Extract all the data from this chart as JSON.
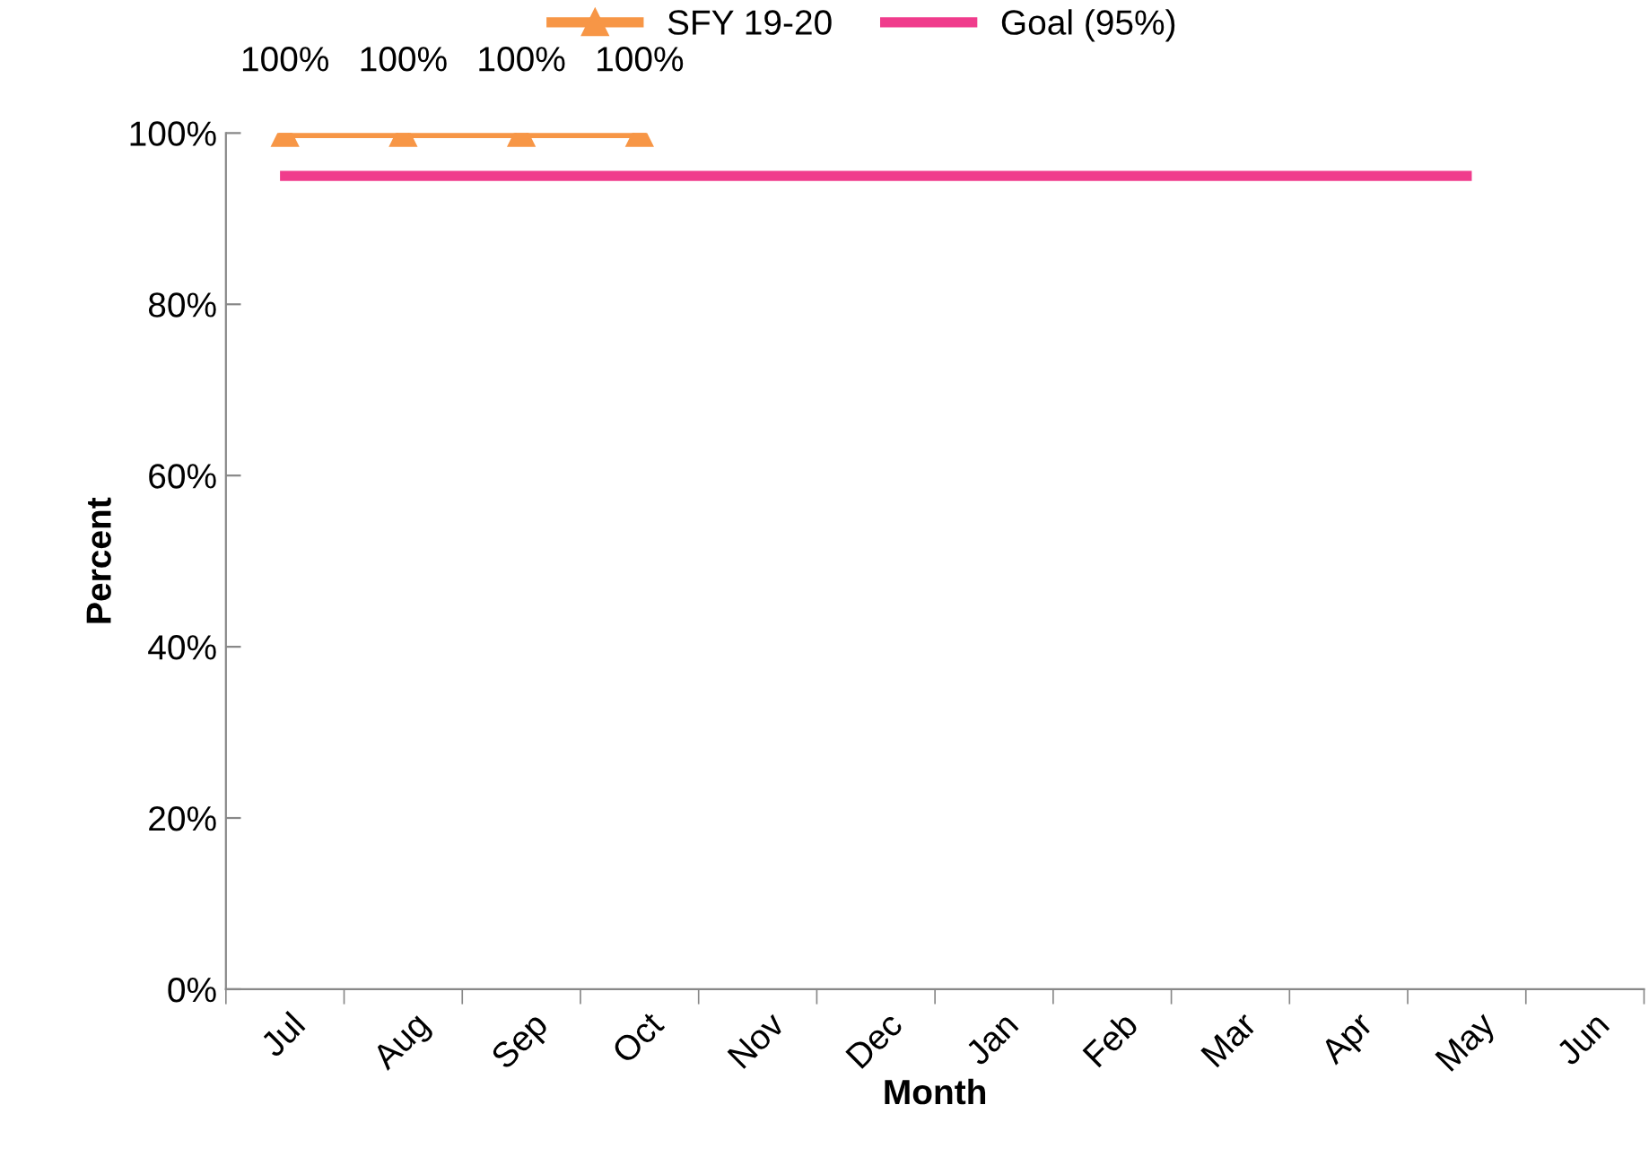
{
  "chart_data": {
    "type": "line",
    "xlabel": "Month",
    "ylabel": "Percent",
    "categories": [
      "Jul",
      "Aug",
      "Sep",
      "Oct",
      "Nov",
      "Dec",
      "Jan",
      "Feb",
      "Mar",
      "Apr",
      "May",
      "Jun"
    ],
    "series": [
      {
        "name": "SFY 19-20",
        "color": "#f79646",
        "marker": "triangle",
        "values": [
          100,
          100,
          100,
          100,
          null,
          null,
          null,
          null,
          null,
          null,
          null,
          null
        ],
        "value_labels": [
          "100%",
          "100%",
          "100%",
          "100%",
          null,
          null,
          null,
          null,
          null,
          null,
          null,
          null
        ]
      },
      {
        "name": "Goal (95%)",
        "color": "#f03c8c",
        "marker": "none",
        "values": [
          95,
          95,
          95,
          95,
          95,
          95,
          95,
          95,
          95,
          95,
          95,
          null
        ]
      }
    ],
    "ylim": [
      0,
      100
    ],
    "yticks": [
      {
        "value": 0,
        "label": "0%"
      },
      {
        "value": 20,
        "label": "20%"
      },
      {
        "value": 40,
        "label": "40%"
      },
      {
        "value": 60,
        "label": "60%"
      },
      {
        "value": 80,
        "label": "80%"
      },
      {
        "value": 100,
        "label": "100%"
      }
    ],
    "grid": false,
    "legend": "top",
    "line_style": "solid"
  }
}
